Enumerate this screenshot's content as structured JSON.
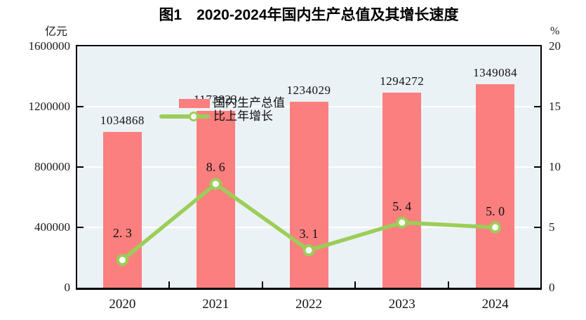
{
  "chart": {
    "title": "图1　2020-2024年国内生产总值及其增长速度",
    "unit_left": "亿元",
    "unit_right": "%",
    "legend": {
      "gdp_label": "国内生产总值",
      "growth_label": "比上年增长"
    }
  },
  "chart_data": {
    "type": "bar+line",
    "title": "图1　2020-2024年国内生产总值及其增长速度",
    "categories": [
      "2020",
      "2021",
      "2022",
      "2023",
      "2024"
    ],
    "series": [
      {
        "name": "国内生产总值",
        "type": "bar",
        "axis": "left",
        "values": [
          1034868,
          1173823,
          1234029,
          1294272,
          1349084
        ],
        "labels": [
          "1034868",
          "1173823",
          "1234029",
          "1294272",
          "1349084"
        ],
        "color": "#fb7f7f"
      },
      {
        "name": "比上年增长",
        "type": "line",
        "axis": "right",
        "values": [
          2.3,
          8.6,
          3.1,
          5.4,
          5.0
        ],
        "labels": [
          "2. 3",
          "8. 6",
          "3. 1",
          "5. 4",
          "5. 0"
        ],
        "color": "#9bce58",
        "marker_fill": "#ffffff"
      }
    ],
    "ylabel_left": "亿元",
    "ylabel_right": "%",
    "ylim_left": [
      0,
      1600000
    ],
    "ylim_right": [
      0,
      20
    ],
    "yticks_left": [
      0,
      400000,
      800000,
      1200000,
      1600000
    ],
    "yticks_right": [
      0,
      5,
      10,
      15,
      20
    ],
    "grid": "horizontal-white-interior",
    "legend_position": "top-left-inside",
    "colors": {
      "plot_bg": "#ebf2f6",
      "frame": "#000000",
      "gridline": "#ffffff",
      "text": "#111111"
    },
    "growth_label_dy": [
      -37,
      -23,
      -23,
      -22,
      -22
    ]
  }
}
